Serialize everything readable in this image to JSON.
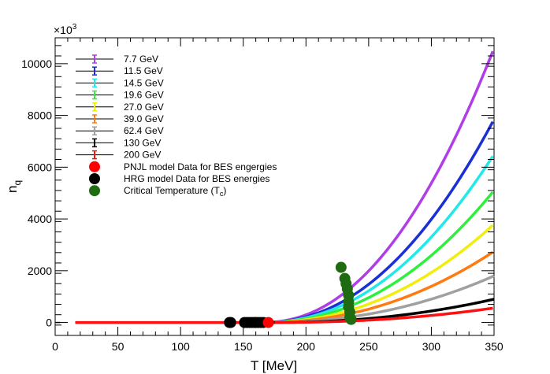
{
  "chart_data": {
    "type": "scatter",
    "title": "",
    "xlabel": "T [MeV]",
    "ylabel": "n",
    "ylabel_subscript": "q",
    "y_multiplier": "×10",
    "y_multiplier_exp": "3",
    "xlim": [
      0,
      350
    ],
    "ylim": [
      -500,
      11000
    ],
    "x_ticks": [
      0,
      50,
      100,
      150,
      200,
      250,
      300,
      350
    ],
    "y_ticks": [
      0,
      2000,
      4000,
      6000,
      8000,
      10000
    ],
    "y_unit_note": "values in units of 10^3",
    "series": [
      {
        "name": "7.7 GeV",
        "color": "#b03ee8",
        "T_onset": 165,
        "y_end": 10600
      },
      {
        "name": "11.5 GeV",
        "color": "#1a2fd6",
        "T_onset": 165,
        "y_end": 7850
      },
      {
        "name": "14.5 GeV",
        "color": "#22e8e8",
        "T_onset": 165,
        "y_end": 6500
      },
      {
        "name": "19.6 GeV",
        "color": "#2ef03c",
        "T_onset": 165,
        "y_end": 5100
      },
      {
        "name": "27.0 GeV",
        "color": "#f2ee0c",
        "T_onset": 165,
        "y_end": 3800
      },
      {
        "name": "39.0 GeV",
        "color": "#ff7a10",
        "T_onset": 165,
        "y_end": 2750
      },
      {
        "name": "62.4 GeV",
        "color": "#a0a0a0",
        "T_onset": 168,
        "y_end": 1800
      },
      {
        "name": "130 GeV",
        "color": "#000000",
        "T_onset": 172,
        "y_end": 900
      },
      {
        "name": "200 GeV",
        "color": "#ff1010",
        "T_onset": 175,
        "y_end": 560
      }
    ],
    "pnjl_line": {
      "T_start": 16,
      "T_end": 172,
      "y": 0
    },
    "legend": [
      {
        "label": "7.7 GeV",
        "color": "#b03ee8",
        "marker": "errorbar"
      },
      {
        "label": "11.5 GeV",
        "color": "#1a2fd6",
        "marker": "errorbar"
      },
      {
        "label": "14.5 GeV",
        "color": "#22e8e8",
        "marker": "errorbar"
      },
      {
        "label": "19.6 GeV",
        "color": "#2ef03c",
        "marker": "errorbar"
      },
      {
        "label": "27.0 GeV",
        "color": "#f2ee0c",
        "marker": "errorbar"
      },
      {
        "label": "39.0 GeV",
        "color": "#ff7a10",
        "marker": "errorbar"
      },
      {
        "label": "62.4 GeV",
        "color": "#a0a0a0",
        "marker": "errorbar"
      },
      {
        "label": "130 GeV",
        "color": "#000000",
        "marker": "errorbar"
      },
      {
        "label": "200 GeV",
        "color": "#ff1010",
        "marker": "errorbar"
      },
      {
        "label": "PNJL model Data for BES engergies",
        "color": "#ff0000",
        "marker": "dot"
      },
      {
        "label": "HRG model Data for BES energies",
        "color": "#000000",
        "marker": "dot"
      },
      {
        "label": "Critical Temperature (T",
        "label_sub": "c",
        "label_tail": ")",
        "color": "#1e6b12",
        "marker": "dot"
      }
    ],
    "hrg_points": [
      {
        "T": 139,
        "y": 0
      },
      {
        "T": 140,
        "y": 0
      },
      {
        "T": 151,
        "y": 0
      },
      {
        "T": 153,
        "y": 0
      },
      {
        "T": 155,
        "y": 0
      },
      {
        "T": 157,
        "y": 0
      },
      {
        "T": 159,
        "y": 0
      },
      {
        "T": 160,
        "y": 0
      },
      {
        "T": 162,
        "y": 0
      },
      {
        "T": 164,
        "y": 0
      },
      {
        "T": 166,
        "y": 0
      }
    ],
    "pnjl_points": [
      {
        "T": 170,
        "y": 0
      }
    ],
    "critical_points": [
      {
        "T": 228,
        "y": 2130
      },
      {
        "T": 231,
        "y": 1700
      },
      {
        "T": 232,
        "y": 1500
      },
      {
        "T": 233,
        "y": 1300
      },
      {
        "T": 234,
        "y": 1050
      },
      {
        "T": 234,
        "y": 800
      },
      {
        "T": 234,
        "y": 600
      },
      {
        "T": 235,
        "y": 400
      },
      {
        "T": 235,
        "y": 200
      },
      {
        "T": 236,
        "y": 120
      }
    ]
  }
}
